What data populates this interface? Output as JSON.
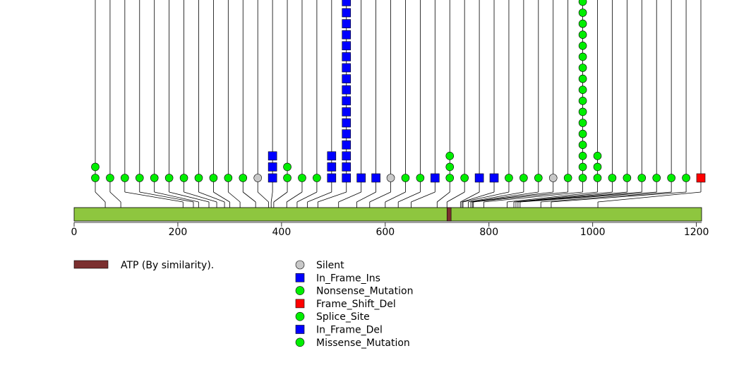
{
  "chart_data": {
    "type": "lollipop",
    "title": "",
    "protein_length": 1210,
    "axis": {
      "xlim": [
        0,
        1210
      ],
      "ticks": [
        0,
        200,
        400,
        600,
        800,
        1000,
        1200
      ]
    },
    "colors": {
      "protein_bar": "#8ec63f",
      "domain_bar": "#7b2f2f",
      "silent": "#c8c8c8",
      "in_frame": "#0000ff",
      "missense": "#00ee00",
      "frame_shift_del": "#ff0000"
    },
    "domains": [
      {
        "label": "ATP (By similarity).",
        "start": 719,
        "end": 727
      }
    ],
    "legend": [
      {
        "label": "Silent",
        "shape": "circle",
        "color": "#c8c8c8"
      },
      {
        "label": "In_Frame_Ins",
        "shape": "square",
        "color": "#0000ff"
      },
      {
        "label": "Nonsense_Mutation",
        "shape": "circle",
        "color": "#00ee00"
      },
      {
        "label": "Frame_Shift_Del",
        "shape": "square",
        "color": "#ff0000"
      },
      {
        "label": "Splice_Site",
        "shape": "circle",
        "color": "#00ee00"
      },
      {
        "label": "In_Frame_Del",
        "shape": "square",
        "color": "#0000ff"
      },
      {
        "label": "Missense_Mutation",
        "shape": "circle",
        "color": "#00ee00"
      }
    ],
    "mutations": [
      {
        "pos": 60,
        "stack": [
          "Missense_Mutation",
          "Missense_Mutation"
        ],
        "col_x": 41,
        "extends_above": true
      },
      {
        "pos": 90,
        "stack": [
          "Missense_Mutation"
        ],
        "col_x": 70,
        "extends_above": true
      },
      {
        "pos": 210,
        "stack": [
          "Missense_Mutation"
        ],
        "col_x": 98,
        "extends_above": true
      },
      {
        "pos": 230,
        "stack": [
          "Missense_Mutation"
        ],
        "col_x": 127,
        "extends_above": true
      },
      {
        "pos": 240,
        "stack": [
          "Missense_Mutation"
        ],
        "col_x": 155,
        "extends_above": true
      },
      {
        "pos": 260,
        "stack": [
          "Missense_Mutation"
        ],
        "col_x": 183,
        "extends_above": true
      },
      {
        "pos": 275,
        "stack": [
          "Missense_Mutation"
        ],
        "col_x": 212,
        "extends_above": true
      },
      {
        "pos": 290,
        "stack": [
          "Missense_Mutation"
        ],
        "col_x": 241,
        "extends_above": true
      },
      {
        "pos": 300,
        "stack": [
          "Missense_Mutation"
        ],
        "col_x": 269,
        "extends_above": true
      },
      {
        "pos": 320,
        "stack": [
          "Missense_Mutation"
        ],
        "col_x": 298,
        "extends_above": true
      },
      {
        "pos": 350,
        "stack": [
          "Missense_Mutation"
        ],
        "col_x": 326,
        "extends_above": true
      },
      {
        "pos": 375,
        "stack": [
          "Silent"
        ],
        "col_x": 355,
        "extends_above": true
      },
      {
        "pos": 380,
        "stack": [
          "In_Frame_Ins",
          "In_Frame_Ins",
          "In_Frame_Ins"
        ],
        "col_x": 383,
        "extends_above": true
      },
      {
        "pos": 385,
        "stack": [
          "Missense_Mutation",
          "Missense_Mutation"
        ],
        "col_x": 412,
        "extends_above": true
      },
      {
        "pos": 410,
        "stack": [
          "Missense_Mutation"
        ],
        "col_x": 440,
        "extends_above": true
      },
      {
        "pos": 430,
        "stack": [
          "Missense_Mutation"
        ],
        "col_x": 469,
        "extends_above": true
      },
      {
        "pos": 450,
        "stack": [
          "In_Frame_Ins",
          "In_Frame_Ins",
          "In_Frame_Ins"
        ],
        "col_x": 497,
        "extends_above": true
      },
      {
        "pos": 470,
        "stack": [
          "In_Frame_Del",
          "In_Frame_Del",
          "In_Frame_Del",
          "In_Frame_Del",
          "In_Frame_Del",
          "In_Frame_Del",
          "In_Frame_Del",
          "In_Frame_Del",
          "In_Frame_Del",
          "In_Frame_Del",
          "In_Frame_Del",
          "In_Frame_Del",
          "In_Frame_Del",
          "In_Frame_Del",
          "In_Frame_Del",
          "In_Frame_Del",
          "In_Frame_Del"
        ],
        "col_x": 525,
        "extends_above": true
      },
      {
        "pos": 510,
        "stack": [
          "In_Frame_Del"
        ],
        "col_x": 554,
        "extends_above": true
      },
      {
        "pos": 545,
        "stack": [
          "In_Frame_Del"
        ],
        "col_x": 582,
        "extends_above": true
      },
      {
        "pos": 570,
        "stack": [
          "Silent"
        ],
        "col_x": 611,
        "extends_above": true
      },
      {
        "pos": 600,
        "stack": [
          "Missense_Mutation"
        ],
        "col_x": 639,
        "extends_above": true
      },
      {
        "pos": 625,
        "stack": [
          "Missense_Mutation"
        ],
        "col_x": 667,
        "extends_above": true
      },
      {
        "pos": 650,
        "stack": [
          "In_Frame_Del"
        ],
        "col_x": 696,
        "extends_above": true
      },
      {
        "pos": 700,
        "stack": [
          "Missense_Mutation",
          "Missense_Mutation",
          "Missense_Mutation"
        ],
        "col_x": 724,
        "extends_above": true
      },
      {
        "pos": 719,
        "stack": [
          "Missense_Mutation"
        ],
        "col_x": 753,
        "extends_above": true
      },
      {
        "pos": 745,
        "stack": [
          "In_Frame_Del"
        ],
        "col_x": 781,
        "extends_above": true
      },
      {
        "pos": 748,
        "stack": [
          "In_Frame_Del"
        ],
        "col_x": 810,
        "extends_above": true
      },
      {
        "pos": 750,
        "stack": [
          "Missense_Mutation"
        ],
        "col_x": 838,
        "extends_above": true
      },
      {
        "pos": 760,
        "stack": [
          "Missense_Mutation"
        ],
        "col_x": 867,
        "extends_above": true
      },
      {
        "pos": 765,
        "stack": [
          "Missense_Mutation"
        ],
        "col_x": 895,
        "extends_above": true
      },
      {
        "pos": 768,
        "stack": [
          "Silent"
        ],
        "col_x": 923,
        "extends_above": true
      },
      {
        "pos": 770,
        "stack": [
          "Missense_Mutation"
        ],
        "col_x": 952,
        "extends_above": true
      },
      {
        "pos": 790,
        "stack": [
          "Missense_Mutation",
          "Missense_Mutation",
          "Missense_Mutation",
          "Missense_Mutation",
          "Missense_Mutation",
          "Missense_Mutation",
          "Missense_Mutation",
          "Missense_Mutation",
          "Missense_Mutation",
          "Missense_Mutation",
          "Missense_Mutation",
          "Missense_Mutation",
          "Missense_Mutation",
          "Missense_Mutation",
          "Missense_Mutation",
          "Missense_Mutation",
          "Missense_Mutation"
        ],
        "col_x": 980,
        "extends_above": true
      },
      {
        "pos": 835,
        "stack": [
          "Missense_Mutation",
          "Missense_Mutation",
          "Missense_Mutation"
        ],
        "col_x": 1008,
        "extends_above": true
      },
      {
        "pos": 848,
        "stack": [
          "Missense_Mutation"
        ],
        "col_x": 1037,
        "extends_above": true
      },
      {
        "pos": 852,
        "stack": [
          "Missense_Mutation"
        ],
        "col_x": 1066,
        "extends_above": true
      },
      {
        "pos": 856,
        "stack": [
          "Missense_Mutation"
        ],
        "col_x": 1094,
        "extends_above": true
      },
      {
        "pos": 860,
        "stack": [
          "Missense_Mutation"
        ],
        "col_x": 1122,
        "extends_above": true
      },
      {
        "pos": 900,
        "stack": [
          "Missense_Mutation"
        ],
        "col_x": 1151,
        "extends_above": true
      },
      {
        "pos": 920,
        "stack": [
          "Missense_Mutation"
        ],
        "col_x": 1179,
        "extends_above": true
      },
      {
        "pos": 1010,
        "stack": [
          "Frame_Shift_Del"
        ],
        "col_x": 1208,
        "extends_above": true
      }
    ]
  }
}
